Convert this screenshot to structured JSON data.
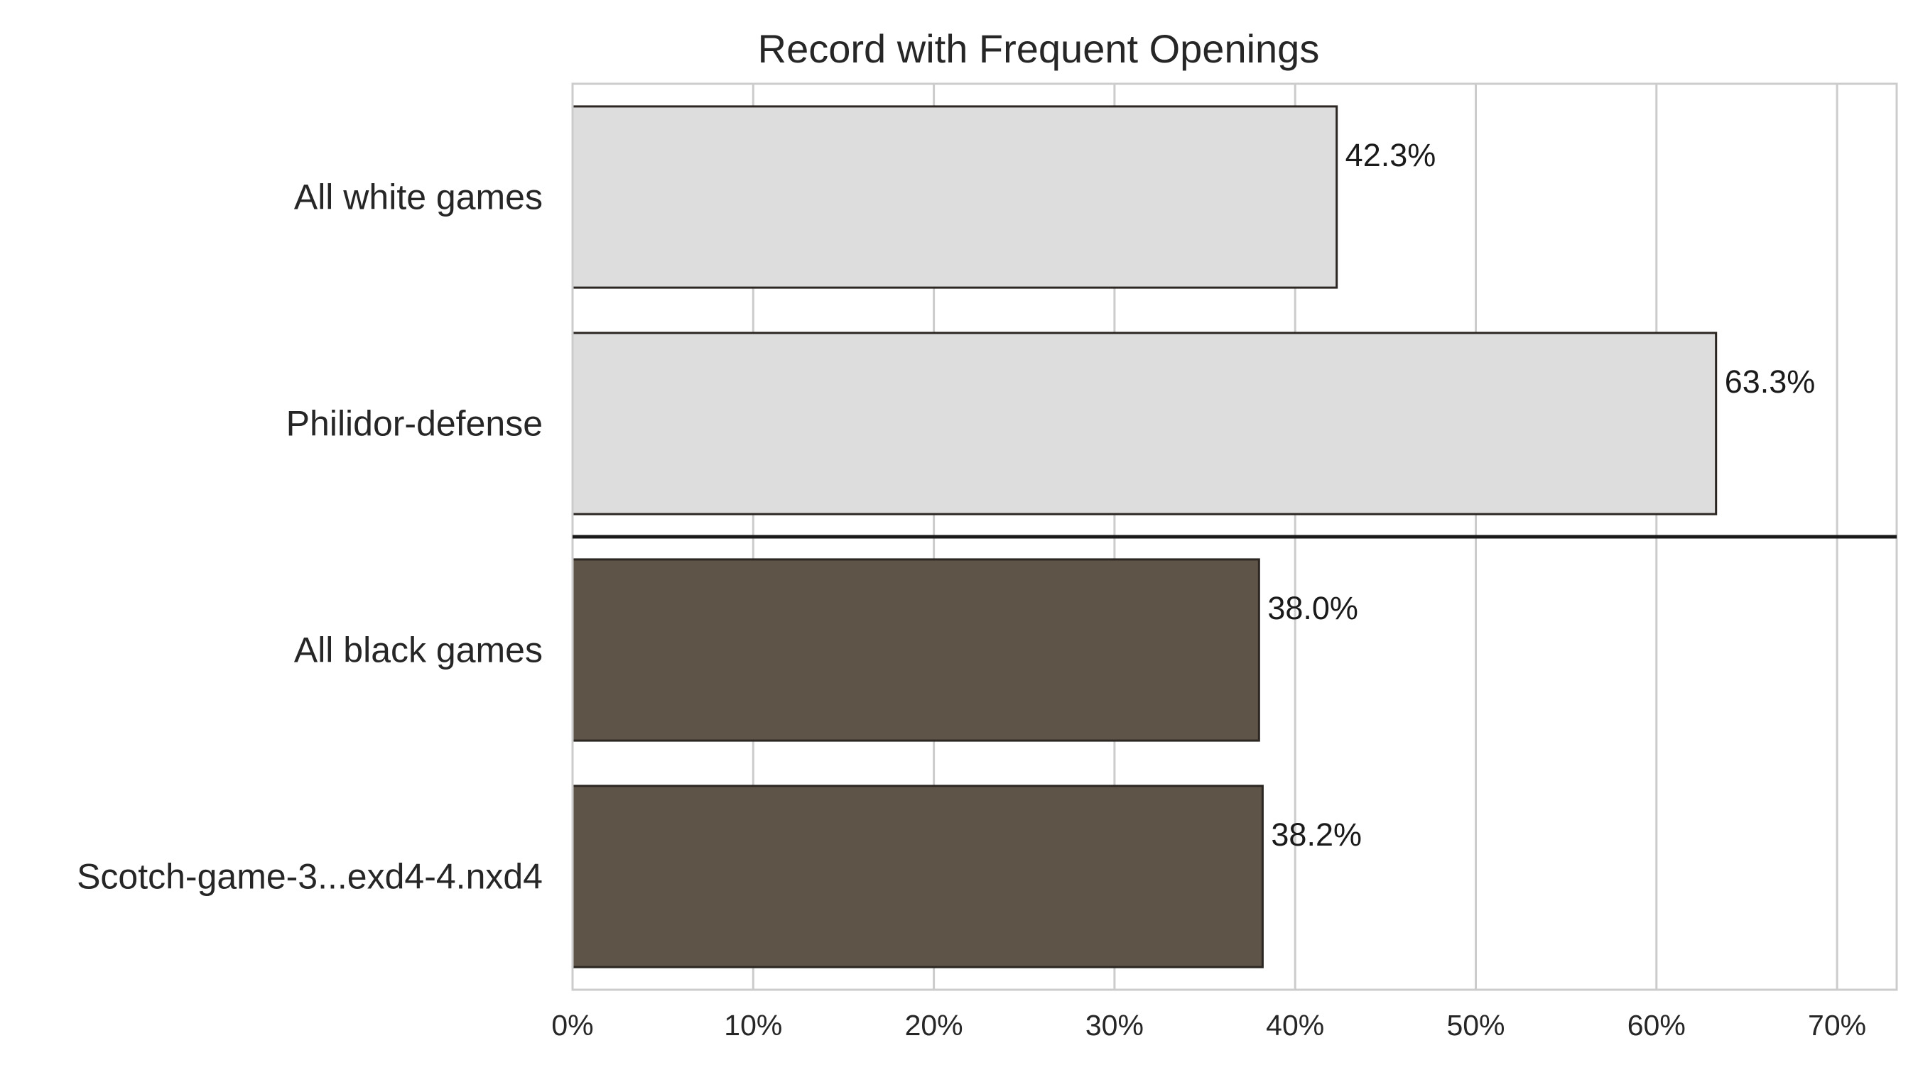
{
  "chart_data": {
    "type": "bar",
    "orientation": "horizontal",
    "title": "Record with Frequent Openings",
    "xlabel": "",
    "ylabel": "",
    "categories": [
      "All white games",
      "Philidor-defense",
      "All black games",
      "Scotch-game-3...exd4-4.nxd4"
    ],
    "values": [
      42.3,
      63.3,
      38.0,
      38.2
    ],
    "value_labels": [
      "42.3%",
      "63.3%",
      "38.0%",
      "38.2%"
    ],
    "bar_colors": [
      "#dddddd",
      "#dddddd",
      "#5f5448",
      "#5f5448"
    ],
    "bar_edge_color": "#2b2622",
    "xlim": [
      0,
      73.3
    ],
    "xticks": [
      0,
      10,
      20,
      30,
      40,
      50,
      60,
      70
    ],
    "xtick_labels": [
      "0%",
      "10%",
      "20%",
      "30%",
      "40%",
      "50%",
      "60%",
      "70%"
    ],
    "grid": "vertical",
    "separator_after_index": 1,
    "grid_color": "#cccccc",
    "spine_color": "#cccccc",
    "separator_color": "#1a1a1a",
    "legend": "none"
  }
}
